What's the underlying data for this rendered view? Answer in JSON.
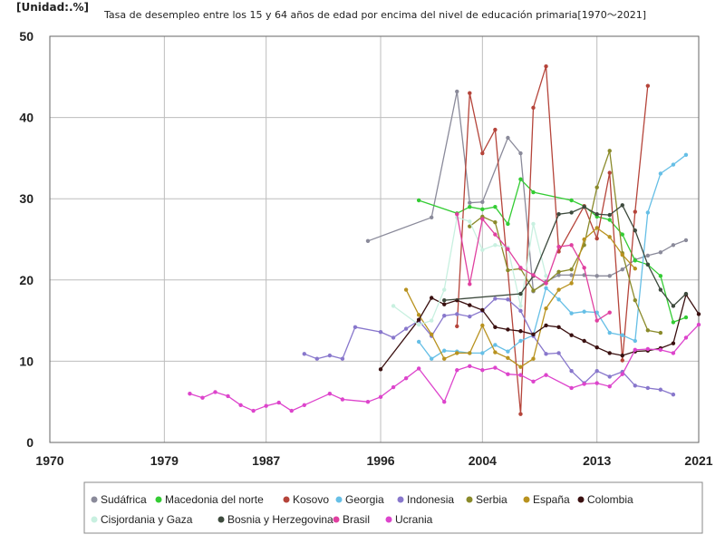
{
  "chart_data": {
    "type": "line",
    "unit_label": "[Unidad:.%]",
    "title": "Tasa de desempleo entre los 15 y 64 años de edad por encima del nivel de educación primaria[1970～2021]",
    "xlim": [
      1970,
      2021
    ],
    "ylim": [
      0,
      50
    ],
    "x_ticks": [
      1970,
      1979,
      1987,
      1996,
      2004,
      2013,
      2021
    ],
    "y_ticks": [
      0,
      10,
      20,
      30,
      40,
      50
    ],
    "grid": true,
    "legend_position": "bottom",
    "series": [
      {
        "name": "Sudáfrica",
        "color": "#8a8a9a",
        "x": [
          1995,
          2000,
          2002,
          2003,
          2004,
          2006,
          2007,
          2008,
          2009,
          2010,
          2011,
          2012,
          2013,
          2014,
          2015,
          2016,
          2017,
          2018,
          2019,
          2020
        ],
        "y": [
          24.8,
          27.7,
          43.2,
          29.5,
          29.6,
          37.5,
          35.6,
          18.6,
          19.8,
          20.6,
          20.6,
          20.6,
          20.5,
          20.5,
          21.3,
          22.5,
          23.0,
          23.4,
          24.3,
          24.9
        ]
      },
      {
        "name": "Macedonia del norte",
        "color": "#33cc33",
        "x": [
          1999,
          2002,
          2003,
          2004,
          2005,
          2006,
          2007,
          2008,
          2011,
          2012,
          2013,
          2014,
          2015,
          2016,
          2017,
          2018,
          2019,
          2020
        ],
        "y": [
          29.8,
          28.2,
          29.0,
          28.7,
          29.0,
          26.9,
          32.4,
          30.8,
          29.8,
          29.1,
          27.8,
          27.4,
          25.6,
          22.4,
          21.9,
          20.5,
          14.8,
          15.4
        ]
      },
      {
        "name": "Kosovo",
        "color": "#b5443a",
        "x": [
          2002,
          2003,
          2004,
          2005,
          2007,
          2008,
          2009,
          2010,
          2012,
          2013,
          2014,
          2015,
          2016,
          2017
        ],
        "y": [
          14.3,
          43.0,
          35.6,
          38.5,
          3.5,
          41.2,
          46.3,
          23.5,
          29.1,
          25.1,
          33.2,
          10.1,
          28.4,
          43.9
        ]
      },
      {
        "name": "Georgia",
        "color": "#66bfe6",
        "x": [
          1999,
          2000,
          2001,
          2002,
          2003,
          2004,
          2005,
          2006,
          2007,
          2008,
          2009,
          2010,
          2011,
          2012,
          2013,
          2014,
          2015,
          2016,
          2017,
          2018,
          2019,
          2020
        ],
        "y": [
          12.4,
          10.3,
          11.3,
          11.2,
          11.0,
          11.0,
          12.0,
          11.2,
          12.5,
          13.2,
          19.0,
          17.6,
          15.9,
          16.1,
          16.0,
          13.5,
          13.2,
          12.5,
          28.3,
          33.1,
          34.2,
          35.4
        ]
      },
      {
        "name": "Indonesia",
        "color": "#8877cc",
        "x": [
          1990,
          1991,
          1992,
          1993,
          1994,
          1996,
          1997,
          1998,
          1999,
          2000,
          2001,
          2002,
          2003,
          2004,
          2005,
          2006,
          2007,
          2008,
          2009,
          2010,
          2011,
          2012,
          2013,
          2014,
          2015,
          2016,
          2017,
          2018,
          2019
        ],
        "y": [
          10.9,
          10.3,
          10.7,
          10.3,
          14.2,
          13.6,
          12.9,
          14.0,
          15.0,
          13.1,
          15.6,
          15.8,
          15.5,
          16.2,
          17.7,
          17.6,
          16.2,
          13.1,
          10.9,
          11.0,
          8.8,
          7.3,
          8.8,
          8.1,
          8.7,
          7.0,
          6.7,
          6.5,
          5.9
        ]
      },
      {
        "name": "Serbia",
        "color": "#8a8a2a",
        "x": [
          2003,
          2004,
          2005,
          2006,
          2007,
          2008,
          2009,
          2010,
          2011,
          2012,
          2013,
          2014,
          2015,
          2016,
          2017,
          2018
        ],
        "y": [
          26.6,
          27.8,
          27.1,
          21.2,
          21.4,
          18.7,
          19.6,
          21.0,
          21.3,
          24.3,
          31.4,
          35.9,
          23.3,
          17.5,
          13.8,
          13.5
        ]
      },
      {
        "name": "España",
        "color": "#b8921f",
        "x": [
          1998,
          1999,
          2000,
          2001,
          2002,
          2003,
          2004,
          2005,
          2006,
          2007,
          2008,
          2009,
          2010,
          2011,
          2012,
          2013,
          2014,
          2015,
          2016
        ],
        "y": [
          18.8,
          15.7,
          13.3,
          10.3,
          11.0,
          11.0,
          14.4,
          11.1,
          10.4,
          9.3,
          10.3,
          16.5,
          18.8,
          19.6,
          25.0,
          26.4,
          25.3,
          23.1,
          21.4
        ]
      },
      {
        "name": "Colombia",
        "color": "#3a1010",
        "x": [
          1996,
          1999,
          2000,
          2001,
          2002,
          2003,
          2004,
          2005,
          2006,
          2007,
          2008,
          2009,
          2010,
          2011,
          2012,
          2013,
          2014,
          2015,
          2016,
          2017,
          2018,
          2019,
          2020,
          2021
        ],
        "y": [
          9.0,
          15.1,
          17.8,
          17.0,
          17.5,
          16.9,
          16.3,
          14.2,
          13.9,
          13.7,
          13.3,
          14.4,
          14.2,
          13.2,
          12.5,
          11.7,
          11.0,
          10.7,
          11.2,
          11.3,
          11.6,
          12.2,
          18.2,
          15.8
        ]
      },
      {
        "name": "Cisjordania y Gaza",
        "color": "#c8f0e0",
        "x": [
          1997,
          1999,
          2000,
          2001,
          2002,
          2003,
          2004,
          2005,
          2006,
          2007,
          2008,
          2009
        ],
        "y": [
          16.8,
          14.5,
          15.0,
          18.8,
          27.7,
          27.2,
          23.7,
          24.3,
          24.0,
          16.8,
          26.9,
          20.5
        ]
      },
      {
        "name": "Bosnia y Herzegovina",
        "color": "#3d4a3d",
        "x": [
          2001,
          2007,
          2008,
          2010,
          2011,
          2012,
          2013,
          2014,
          2015,
          2016,
          2017,
          2018,
          2019,
          2020
        ],
        "y": [
          17.5,
          18.3,
          20.5,
          28.1,
          28.3,
          29.0,
          28.1,
          28.0,
          29.2,
          26.1,
          21.9,
          18.8,
          16.8,
          18.3
        ]
      },
      {
        "name": "Brasil",
        "color": "#e040a0",
        "x": [
          2002,
          2003,
          2004,
          2005,
          2006,
          2007,
          2008,
          2009,
          2010,
          2011,
          2012,
          2013,
          2014
        ],
        "y": [
          28.1,
          19.5,
          27.5,
          25.6,
          23.8,
          21.5,
          20.6,
          19.6,
          24.1,
          24.3,
          21.5,
          15.0,
          16.0
        ]
      },
      {
        "name": "Ucrania",
        "color": "#dd44cc",
        "x": [
          1981,
          1982,
          1983,
          1984,
          1985,
          1986,
          1987,
          1988,
          1989,
          1990,
          1992,
          1993,
          1995,
          1996,
          1997,
          1998,
          1999,
          2001,
          2002,
          2003,
          2004,
          2005,
          2006,
          2007,
          2008,
          2009,
          2011,
          2012,
          2013,
          2014,
          2015,
          2016,
          2017,
          2018,
          2019,
          2020,
          2021
        ],
        "y": [
          6.0,
          5.5,
          6.2,
          5.7,
          4.6,
          3.9,
          4.5,
          4.9,
          3.9,
          4.6,
          6.0,
          5.3,
          5.0,
          5.6,
          6.8,
          7.9,
          9.1,
          5.0,
          8.9,
          9.4,
          8.9,
          9.2,
          8.4,
          8.3,
          7.5,
          8.3,
          6.7,
          7.2,
          7.3,
          6.9,
          8.4,
          11.4,
          11.5,
          11.4,
          11.0,
          12.9,
          14.5
        ]
      }
    ]
  }
}
